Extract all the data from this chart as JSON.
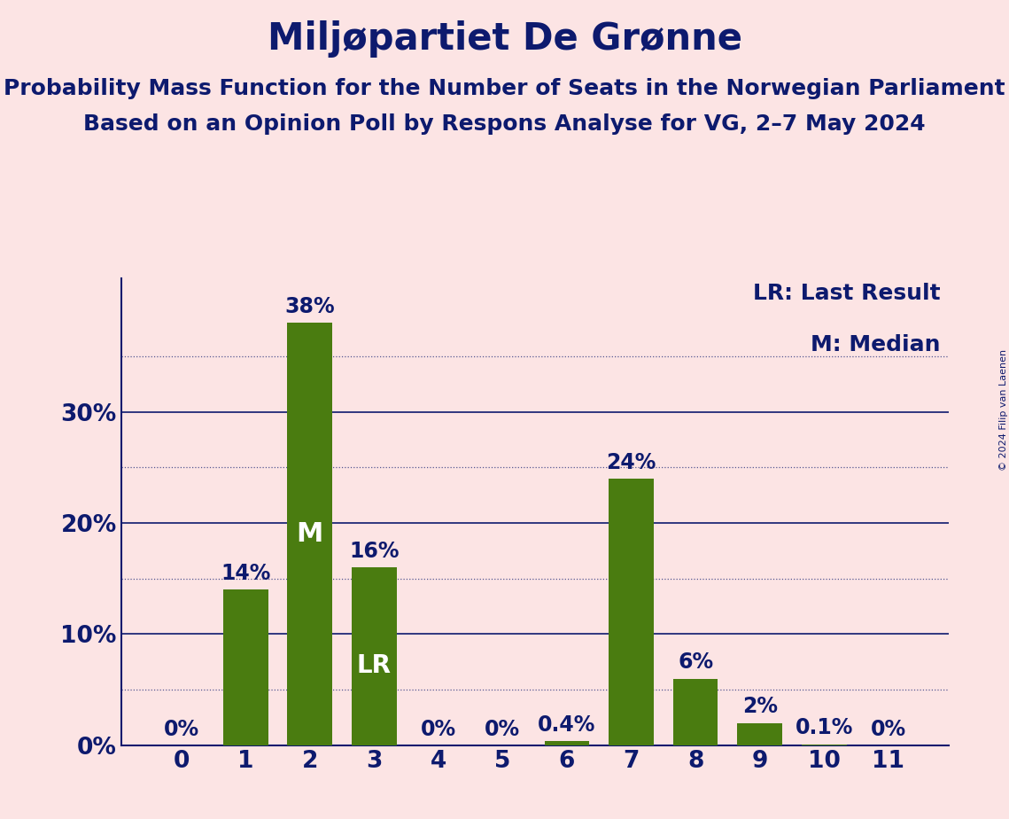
{
  "title": "Miljøpartiet De Grønne",
  "subtitle1": "Probability Mass Function for the Number of Seats in the Norwegian Parliament",
  "subtitle2": "Based on an Opinion Poll by Respons Analyse for VG, 2–7 May 2024",
  "copyright": "© 2024 Filip van Laenen",
  "categories": [
    0,
    1,
    2,
    3,
    4,
    5,
    6,
    7,
    8,
    9,
    10,
    11
  ],
  "values": [
    0.0,
    14.0,
    38.0,
    16.0,
    0.0,
    0.0,
    0.4,
    24.0,
    6.0,
    2.0,
    0.1,
    0.0
  ],
  "bar_color": "#4a7c10",
  "background_color": "#fce4e4",
  "text_color": "#0d1a6e",
  "bar_labels": [
    "0%",
    "14%",
    "38%",
    "16%",
    "0%",
    "0%",
    "0.4%",
    "24%",
    "6%",
    "2%",
    "0.1%",
    "0%"
  ],
  "median_bar": 2,
  "lr_bar": 3,
  "ylim": [
    0,
    42
  ],
  "yticks": [
    0,
    10,
    20,
    30
  ],
  "ytick_labels": [
    "0%",
    "10%",
    "20%",
    "30%"
  ],
  "mid_grid_lines": [
    5,
    15,
    25,
    35
  ],
  "legend_lr": "LR: Last Result",
  "legend_m": "M: Median",
  "title_fontsize": 30,
  "subtitle_fontsize": 18,
  "bar_label_fontsize": 17,
  "axis_tick_fontsize": 19,
  "legend_fontsize": 18,
  "copyright_fontsize": 8,
  "m_label_fontsize": 22,
  "lr_label_fontsize": 20
}
